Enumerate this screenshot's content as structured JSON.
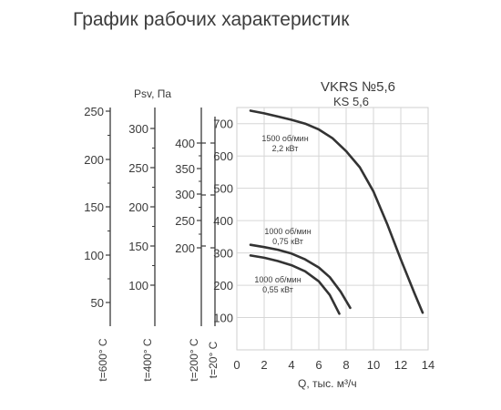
{
  "page": {
    "title": "График рабочих характеристик"
  },
  "chart_data": {
    "type": "line",
    "title": "VKRS №5,6",
    "subtitle": "KS 5,6",
    "xlabel": "Q, тыс. м³/ч",
    "ylabel": "Psv, Па",
    "xlim": [
      0,
      14
    ],
    "x_ticks": [
      "0",
      "2",
      "4",
      "6",
      "8",
      "10",
      "12",
      "14"
    ],
    "ylim": [
      0,
      750
    ],
    "y_ticks": [
      "100",
      "200",
      "300",
      "400",
      "500",
      "600",
      "700"
    ],
    "grid": true,
    "auxiliary_axes": [
      {
        "label": "t=600° С",
        "ticks": [
          "50",
          "100",
          "150",
          "200",
          "250"
        ]
      },
      {
        "label": "t=400° С",
        "ticks": [
          "100",
          "150",
          "200",
          "250",
          "300"
        ]
      },
      {
        "label": "t=200° С",
        "ticks": [
          "200",
          "250",
          "300",
          "350",
          "400"
        ]
      },
      {
        "label": "t=20° С",
        "ticks": [
          "200",
          "300",
          "400"
        ]
      }
    ],
    "series": [
      {
        "name": "1500 об/мин 2,2 кВт",
        "label_lines": [
          "1500 об/мин",
          "2,2 кВт"
        ],
        "x": [
          1.0,
          2.0,
          3.0,
          4.0,
          5.0,
          6.0,
          7.0,
          8.0,
          9.0,
          10.0,
          11.0,
          12.0,
          13.0,
          13.6
        ],
        "y": [
          740,
          732,
          722,
          712,
          700,
          682,
          655,
          615,
          565,
          490,
          390,
          280,
          175,
          115
        ]
      },
      {
        "name": "1000 об/мин 0,75 кВт",
        "label_lines": [
          "1000 об/мин",
          "0,75 кВт"
        ],
        "x": [
          1.0,
          2.0,
          3.0,
          4.0,
          5.0,
          6.0,
          6.8,
          7.6,
          8.3
        ],
        "y": [
          325,
          318,
          310,
          298,
          280,
          255,
          225,
          180,
          130
        ]
      },
      {
        "name": "1000 об/мин 0,55 кВт",
        "label_lines": [
          "1000 об/мин",
          "0,55 кВт"
        ],
        "x": [
          1.0,
          2.0,
          3.0,
          4.0,
          5.0,
          6.0,
          6.8,
          7.5
        ],
        "y": [
          292,
          285,
          275,
          262,
          243,
          212,
          170,
          112
        ]
      }
    ]
  }
}
